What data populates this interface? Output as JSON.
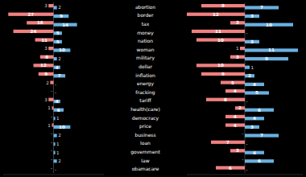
{
  "chart_data": [
    {
      "type": "bar",
      "orientation": "horizontal",
      "categories": [
        "abortion",
        "border",
        "tax",
        "money",
        "nation",
        "woman",
        "military",
        "dollar",
        "inflation",
        "energy",
        "fracking",
        "tariff",
        "health(care)",
        "democracy",
        "price",
        "business",
        "loan",
        "government",
        "law",
        "obamacare"
      ],
      "series": [
        {
          "color": "#f08080",
          "values": [
            3,
            27,
            16,
            24,
            11,
            3,
            8,
            12,
            9,
            2,
            0,
            3,
            1,
            0,
            1,
            0,
            0,
            0,
            0,
            0
          ],
          "value_labels": [
            "3",
            "27",
            "16",
            "24",
            "11",
            "3",
            "8",
            "12",
            "9",
            "2",
            "-",
            "3",
            "1",
            "-",
            "1",
            "-",
            "-",
            "-",
            "-",
            "-"
          ]
        },
        {
          "color": "#6ab0e0",
          "values": [
            2,
            9,
            14,
            5,
            5,
            10,
            2,
            4,
            7,
            0,
            0,
            4,
            6,
            1,
            10,
            2,
            1,
            1,
            2,
            0
          ],
          "value_labels": [
            "2",
            "9",
            "14",
            "5",
            "5",
            "10",
            "2",
            "4",
            "7",
            "-",
            "-",
            "4",
            "6",
            "1",
            "10",
            "2",
            "1",
            "1",
            "2",
            "-"
          ]
        }
      ],
      "xlim": [
        -30,
        30
      ],
      "xticks": [
        0
      ],
      "tick_labels": "y",
      "data_labels": true
    },
    {
      "type": "bar",
      "orientation": "horizontal",
      "categories": [
        "abortion",
        "border",
        "tax",
        "money",
        "nation",
        "woman",
        "military",
        "dollar",
        "inflation",
        "energy",
        "fracking",
        "tariff",
        "health(care)",
        "democracy",
        "price",
        "business",
        "loan",
        "government",
        "law",
        "obamacare"
      ],
      "series": [
        {
          "color": "#f08080",
          "values": [
            9,
            12,
            3,
            11,
            10,
            1,
            3,
            10,
            9,
            5,
            4,
            8,
            2,
            4,
            4,
            0,
            7,
            3,
            0,
            6
          ],
          "value_labels": [
            "9",
            "12",
            "3",
            "11",
            "10",
            "1",
            "3",
            "10",
            "9",
            "5",
            "4",
            "8",
            "2",
            "4",
            "4",
            "-",
            "7",
            "3",
            "-",
            "6"
          ]
        },
        {
          "color": "#6ab0e0",
          "values": [
            7,
            3,
            10,
            0,
            3,
            11,
            9,
            1,
            2,
            4,
            5,
            0,
            6,
            4,
            3,
            7,
            0,
            4,
            6,
            0
          ],
          "value_labels": [
            "7",
            "3",
            "10",
            "-",
            "3",
            "11",
            "9",
            "1",
            "2",
            "4",
            "5",
            "-",
            "6",
            "4",
            "3",
            "7",
            "-",
            "4",
            "6",
            "-"
          ]
        }
      ],
      "xlim": [
        -12,
        12
      ],
      "xticks": [
        0
      ],
      "tick_labels": false,
      "data_labels": true
    }
  ]
}
